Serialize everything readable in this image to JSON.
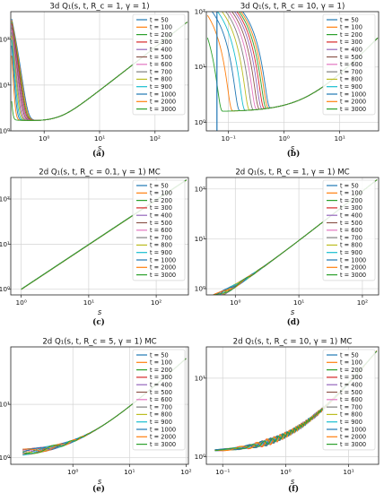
{
  "figure": {
    "legend_entries": [
      "t = 50",
      "t = 100",
      "t = 200",
      "t = 300",
      "t = 400",
      "t = 500",
      "t = 600",
      "t = 700",
      "t = 800",
      "t = 900",
      "t = 1000",
      "t = 2000",
      "t = 3000"
    ],
    "series_colors": [
      "#1f77b4",
      "#ff7f0e",
      "#2ca02c",
      "#d62728",
      "#9467bd",
      "#8c564b",
      "#e377c2",
      "#7f7f7f",
      "#bcbd22",
      "#17becf",
      "#1f77b4",
      "#ff7f0e",
      "#2ca02c"
    ]
  },
  "chart_data": [
    {
      "type": "line",
      "panel_label": "(a)",
      "title": "3d Q₁(s, t, R_c = 1, γ = 1)",
      "xlabel": "s",
      "ylabel": "",
      "xscale": "log",
      "yscale": "log",
      "xlim": [
        0.25,
        400
      ],
      "ylim": [
        1,
        400
      ],
      "xticks": [
        {
          "v": 1,
          "label": "10⁰"
        },
        {
          "v": 10,
          "label": "10¹"
        },
        {
          "v": 100,
          "label": "10²"
        }
      ],
      "yticks": [
        {
          "v": 1,
          "label": "10⁰"
        },
        {
          "v": 10,
          "label": "10¹"
        },
        {
          "v": 100,
          "label": "10²"
        }
      ],
      "grid": true,
      "legend": "upper-right"
    },
    {
      "type": "line",
      "panel_label": "(b)",
      "title": "3d Q₁(s, t, R_c = 10, γ = 1)",
      "xlabel": "s",
      "ylabel": "",
      "xscale": "log",
      "yscale": "log",
      "xlim": [
        0.04,
        50
      ],
      "ylim": [
        0.7,
        100
      ],
      "xticks": [
        {
          "v": 0.1,
          "label": "10⁻¹"
        },
        {
          "v": 1,
          "label": "10⁰"
        },
        {
          "v": 10,
          "label": "10¹"
        }
      ],
      "yticks": [
        {
          "v": 1,
          "label": "10⁰"
        },
        {
          "v": 10,
          "label": "10¹"
        },
        {
          "v": 100,
          "label": "10²"
        }
      ],
      "grid": true,
      "legend": "upper-right"
    },
    {
      "type": "line",
      "panel_label": "(c)",
      "title": "2d Q₁(s, t, R_c = 0.1, γ = 1) MC",
      "xlabel": "s",
      "ylabel": "",
      "xscale": "log",
      "yscale": "log",
      "xlim": [
        0.7,
        300
      ],
      "ylim": [
        0.75,
        300
      ],
      "xticks": [
        {
          "v": 1,
          "label": "10⁰"
        },
        {
          "v": 10,
          "label": "10¹"
        },
        {
          "v": 100,
          "label": "10²"
        }
      ],
      "yticks": [
        {
          "v": 1,
          "label": "10⁰"
        },
        {
          "v": 10,
          "label": "10¹"
        },
        {
          "v": 100,
          "label": "10²"
        }
      ],
      "grid": true,
      "legend": "upper-right"
    },
    {
      "type": "line",
      "panel_label": "(d)",
      "title": "2d Q₁(s, t, R_c = 1, γ = 1) MC",
      "xlabel": "s",
      "ylabel": "",
      "xscale": "log",
      "yscale": "log",
      "xlim": [
        0.35,
        180
      ],
      "ylim": [
        0.75,
        170
      ],
      "xticks": [
        {
          "v": 1,
          "label": "10⁰"
        },
        {
          "v": 10,
          "label": "10¹"
        },
        {
          "v": 100,
          "label": "10²"
        }
      ],
      "yticks": [
        {
          "v": 1,
          "label": "10⁰"
        },
        {
          "v": 10,
          "label": "10¹"
        },
        {
          "v": 100,
          "label": "10²"
        }
      ],
      "grid": true,
      "legend": "upper-right"
    },
    {
      "type": "line",
      "panel_label": "(e)",
      "title": "2d Q₁(s, t, R_c = 5, γ = 1) MC",
      "xlabel": "s",
      "ylabel": "",
      "xscale": "log",
      "yscale": "log",
      "xlim": [
        0.08,
        110
      ],
      "ylim": [
        0.75,
        120
      ],
      "xticks": [
        {
          "v": 1,
          "label": "10⁰"
        },
        {
          "v": 10,
          "label": "10¹"
        },
        {
          "v": 100,
          "label": "10²"
        }
      ],
      "yticks": [
        {
          "v": 1,
          "label": "10⁰"
        },
        {
          "v": 10,
          "label": "10¹"
        }
      ],
      "grid": true,
      "legend": "upper-right"
    },
    {
      "type": "line",
      "panel_label": "(f)",
      "title": "2d Q₁(s, t, R_c = 10, γ = 1) MC",
      "xlabel": "s",
      "ylabel": "",
      "xscale": "log",
      "yscale": "log",
      "xlim": [
        0.055,
        30
      ],
      "ylim": [
        0.8,
        25
      ],
      "xticks": [
        {
          "v": 0.1,
          "label": "10⁻¹"
        },
        {
          "v": 1,
          "label": "10⁰"
        },
        {
          "v": 10,
          "label": "10¹"
        }
      ],
      "yticks": [
        {
          "v": 1,
          "label": "10⁰"
        },
        {
          "v": 10,
          "label": "10¹"
        }
      ],
      "grid": true,
      "legend": "upper-right"
    }
  ]
}
